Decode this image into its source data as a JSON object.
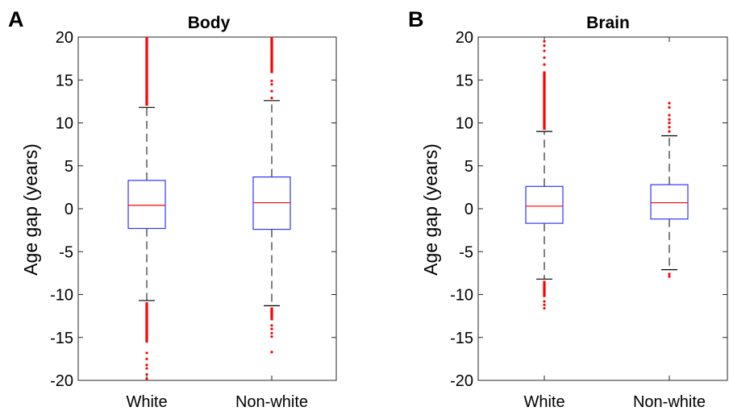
{
  "chart_data": [
    {
      "type": "box",
      "panel_letter": "A",
      "title": "Body",
      "xlabel": "",
      "ylabel": "Age gap (years)",
      "ylim": [
        -20,
        20
      ],
      "yticks": [
        20,
        15,
        10,
        5,
        0,
        -5,
        -10,
        -15,
        -20
      ],
      "categories": [
        "White",
        "Non-white"
      ],
      "grid": false,
      "box_color": "#3333ff",
      "median_color": "#ff0000",
      "whisker_color": "#000000",
      "outlier_color": "#ff0000",
      "boxes": [
        {
          "name": "White",
          "q1": -2.3,
          "median": 0.4,
          "q3": 3.3,
          "whisker_low": -10.7,
          "whisker_high": 11.8,
          "outlier_bands": [
            [
              12.0,
              20.0
            ],
            [
              -15.6,
              -10.9
            ]
          ],
          "outliers": [
            -16.8,
            -17.5,
            -18.2,
            -18.6,
            -19.3,
            -19.8
          ]
        },
        {
          "name": "Non-white",
          "q1": -2.4,
          "median": 0.7,
          "q3": 3.7,
          "whisker_low": -11.3,
          "whisker_high": 12.6,
          "outlier_bands": [
            [
              15.8,
              20.0
            ],
            [
              -13.0,
              -11.5
            ]
          ],
          "outliers": [
            14.5,
            14.9,
            13.7,
            12.9,
            -13.6,
            -14.0,
            -14.5,
            -14.9,
            -16.7
          ]
        }
      ]
    },
    {
      "type": "box",
      "panel_letter": "B",
      "title": "Brain",
      "xlabel": "",
      "ylabel": "Age gap (years)",
      "ylim": [
        -20,
        20
      ],
      "yticks": [
        20,
        15,
        10,
        5,
        0,
        -5,
        -10,
        -15,
        -20
      ],
      "categories": [
        "White",
        "Non-white"
      ],
      "grid": false,
      "box_color": "#3333ff",
      "median_color": "#ff0000",
      "whisker_color": "#000000",
      "outlier_color": "#ff0000",
      "boxes": [
        {
          "name": "White",
          "q1": -1.7,
          "median": 0.3,
          "q3": 2.6,
          "whisker_low": -8.2,
          "whisker_high": 9.0,
          "outlier_bands": [
            [
              9.2,
              16.0
            ],
            [
              -10.3,
              -8.4
            ]
          ],
          "outliers": [
            16.8,
            17.6,
            18.4,
            19.0,
            19.5,
            -10.8,
            -11.2,
            -11.6
          ]
        },
        {
          "name": "Non-white",
          "q1": -1.2,
          "median": 0.7,
          "q3": 2.8,
          "whisker_low": -7.1,
          "whisker_high": 8.5,
          "outlier_bands": [],
          "outliers": [
            9.0,
            9.5,
            10.0,
            10.4,
            10.9,
            11.8,
            12.3,
            -7.6,
            -7.9
          ]
        }
      ]
    }
  ]
}
